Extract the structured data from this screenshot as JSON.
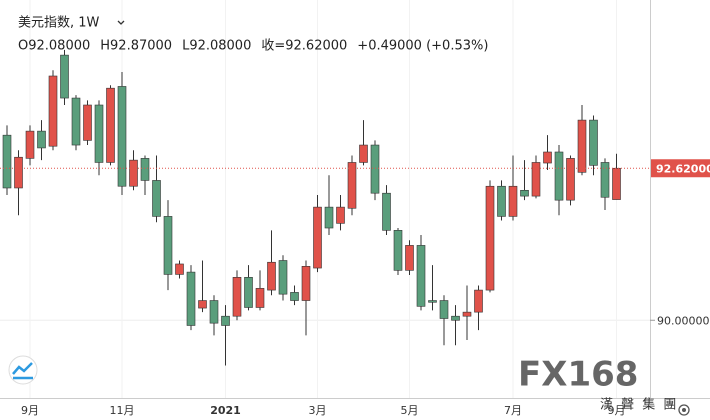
{
  "chart_data": {
    "type": "candlestick",
    "title": "美元指数, 1W",
    "ohlc_legend": [
      "O92.08000",
      "H92.87000",
      "L92.08000",
      "收=92.62000",
      "+0.49000 (+0.53%)"
    ],
    "categories": [
      null,
      null,
      "9月",
      null,
      null,
      null,
      null,
      null,
      null,
      null,
      "11月",
      null,
      null,
      null,
      null,
      null,
      null,
      null,
      null,
      "2021",
      null,
      null,
      null,
      null,
      null,
      null,
      null,
      "3月",
      null,
      null,
      null,
      null,
      null,
      null,
      null,
      "5月",
      null,
      null,
      null,
      null,
      null,
      null,
      null,
      null,
      "7月",
      null,
      null,
      null,
      null,
      null,
      null,
      null,
      null,
      "9月"
    ],
    "open": [
      93.19,
      92.28,
      92.79,
      93.26,
      93.0,
      94.57,
      93.83,
      93.1,
      93.71,
      92.72,
      94.03,
      92.31,
      92.79,
      92.41,
      91.79,
      90.79,
      90.83,
      90.21,
      90.34,
      90.07,
      90.07,
      90.74,
      90.22,
      90.52,
      91.03,
      90.48,
      90.34,
      90.9,
      91.95,
      91.67,
      91.93,
      92.72,
      93.02,
      92.19,
      91.55,
      90.86,
      91.29,
      90.34,
      90.34,
      90.07,
      90.07,
      90.14,
      90.52,
      92.31,
      91.79,
      92.24,
      92.14,
      92.71,
      92.9,
      92.07,
      92.55,
      93.45,
      92.72,
      92.08
    ],
    "high": [
      93.36,
      92.93,
      93.36,
      93.45,
      94.31,
      94.66,
      93.88,
      93.79,
      93.79,
      94.05,
      94.28,
      92.93,
      92.84,
      92.84,
      92.07,
      91.03,
      90.95,
      91.03,
      90.43,
      90.26,
      90.86,
      90.95,
      90.86,
      91.55,
      91.12,
      90.6,
      91.03,
      92.16,
      92.5,
      92.16,
      92.84,
      93.45,
      93.1,
      92.33,
      91.59,
      91.38,
      91.47,
      90.95,
      90.43,
      90.26,
      90.6,
      90.6,
      92.41,
      92.41,
      92.84,
      92.76,
      92.84,
      93.19,
      93.02,
      92.84,
      93.71,
      93.53,
      92.79,
      92.87
    ],
    "low": [
      92.16,
      91.81,
      92.67,
      92.76,
      92.93,
      93.71,
      92.93,
      93.02,
      92.5,
      92.67,
      92.16,
      92.24,
      92.16,
      91.69,
      90.52,
      90.72,
      89.83,
      90.14,
      89.74,
      89.22,
      90.0,
      90.17,
      90.17,
      90.43,
      90.34,
      90.26,
      89.74,
      90.83,
      91.47,
      91.55,
      91.81,
      92.67,
      92.07,
      91.47,
      90.78,
      90.78,
      90.17,
      90.17,
      89.57,
      89.57,
      89.66,
      89.83,
      90.48,
      91.72,
      91.72,
      92.07,
      92.1,
      92.59,
      91.81,
      91.98,
      92.5,
      92.5,
      91.9,
      92.08
    ],
    "close": [
      92.28,
      92.81,
      93.26,
      92.97,
      94.21,
      93.83,
      93.02,
      93.71,
      92.72,
      94.0,
      92.31,
      92.76,
      92.41,
      91.79,
      90.79,
      90.97,
      89.91,
      90.34,
      89.95,
      89.91,
      90.74,
      90.22,
      90.55,
      91.0,
      90.45,
      90.34,
      90.93,
      91.95,
      91.59,
      91.95,
      92.72,
      93.02,
      92.19,
      91.55,
      90.86,
      91.29,
      90.24,
      90.31,
      90.03,
      90.0,
      90.14,
      90.52,
      92.31,
      91.79,
      92.31,
      92.14,
      92.72,
      92.9,
      92.07,
      92.79,
      93.45,
      92.67,
      92.12,
      92.62
    ],
    "up_color": "#e0524a",
    "down_color": "#5a9e7c",
    "ylim": [
      88.66,
      95.52
    ],
    "yticks": [
      {
        "value": 90,
        "label": "90.00000"
      }
    ],
    "last_price": {
      "value": 92.62,
      "label": "92.62000"
    },
    "watermark": "FX168",
    "watermark_sub": "漢 聲 集 團",
    "grid": true
  }
}
